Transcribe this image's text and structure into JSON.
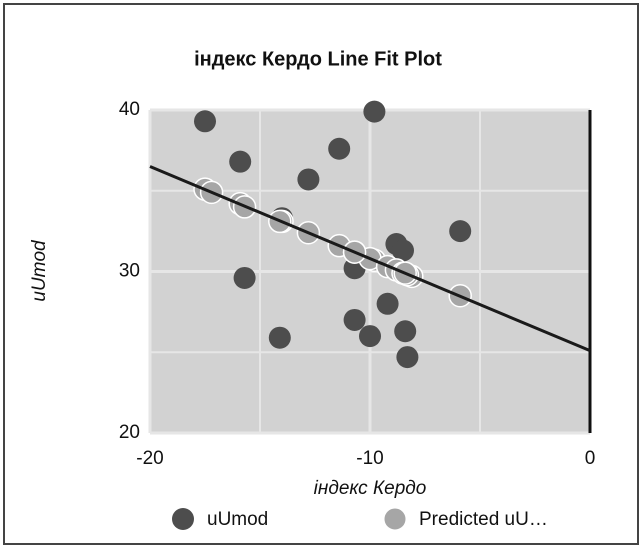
{
  "chart_data": {
    "type": "scatter",
    "title": "індекс Кердо Line Fit Plot",
    "x_label": "індекс Кердо",
    "y_label": "uUmod",
    "xlim": [
      -20,
      0
    ],
    "xticks": [
      -20,
      -10,
      0
    ],
    "ylim": [
      20,
      40
    ],
    "yticks": [
      20,
      30,
      40
    ],
    "grid": true,
    "legend": "bottom",
    "series": [
      {
        "name": "uUmod",
        "color": "#4d4d4d",
        "x": [
          -17.5,
          -9.8,
          -15.9,
          -11.4,
          -12.8,
          -14.0,
          -17.2,
          -15.7,
          -14.1,
          -10.7,
          -10.0,
          -9.2,
          -8.8,
          -8.5,
          -8.1,
          -8.3,
          -8.4,
          -5.9,
          -10.7
        ],
        "values": [
          39.3,
          39.9,
          36.8,
          37.6,
          35.7,
          33.3,
          34.9,
          29.6,
          25.9,
          27.0,
          26.0,
          28.0,
          31.7,
          31.3,
          29.7,
          24.7,
          26.3,
          32.5,
          30.2
        ]
      },
      {
        "name": "Predicted uU…",
        "color": "#a6a6a6",
        "x": [
          -17.5,
          -9.8,
          -15.9,
          -11.4,
          -12.8,
          -14.0,
          -17.2,
          -15.7,
          -14.1,
          -10.7,
          -10.0,
          -9.2,
          -8.8,
          -8.5,
          -8.1,
          -8.3,
          -8.4,
          -5.9,
          -10.7
        ],
        "values": [
          35.1,
          30.7,
          34.2,
          31.6,
          32.4,
          33.1,
          34.9,
          34.0,
          33.1,
          31.2,
          30.8,
          30.3,
          30.1,
          29.9,
          29.7,
          29.8,
          29.9,
          28.5,
          31.2
        ]
      }
    ],
    "fit_line": {
      "color": "#1a1a1a",
      "x": [
        -20,
        0
      ],
      "values": [
        36.5,
        25.1
      ]
    }
  }
}
